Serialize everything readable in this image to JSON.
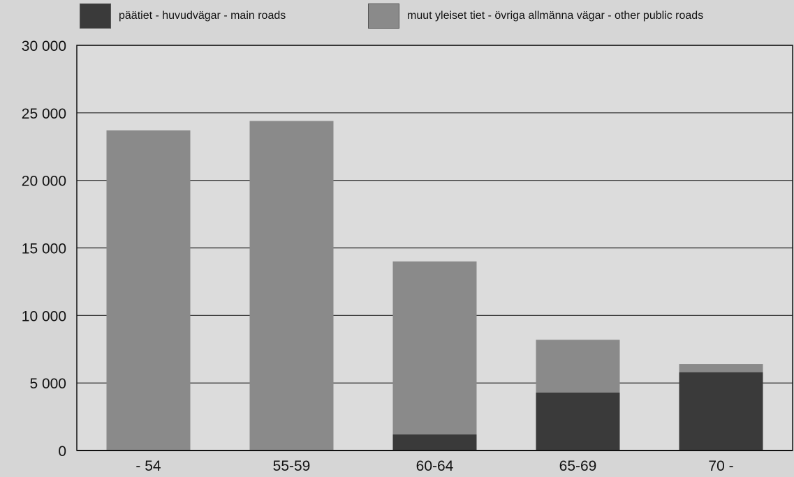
{
  "chart_data": {
    "type": "bar",
    "stacked": true,
    "categories": [
      "- 54",
      "55-59",
      "60-64",
      "65-69",
      "70 -"
    ],
    "series": [
      {
        "name": "päätiet - huvudvägar - main roads",
        "values": [
          0,
          0,
          1200,
          4300,
          5800
        ],
        "color": "#3a3a3a"
      },
      {
        "name": "muut yleiset tiet - övriga allmänna vägar - other public roads",
        "values": [
          23700,
          24400,
          12800,
          3900,
          600
        ],
        "color": "#8a8a8a"
      }
    ],
    "ylim": [
      0,
      30000
    ],
    "yticks": [
      0,
      5000,
      10000,
      15000,
      20000,
      25000,
      30000
    ],
    "ytick_labels": [
      "0",
      "5 000",
      "10 000",
      "15 000",
      "20 000",
      "25 000",
      "30 000"
    ],
    "grid": true,
    "legend_position": "top",
    "title": "",
    "xlabel": "",
    "ylabel": ""
  }
}
